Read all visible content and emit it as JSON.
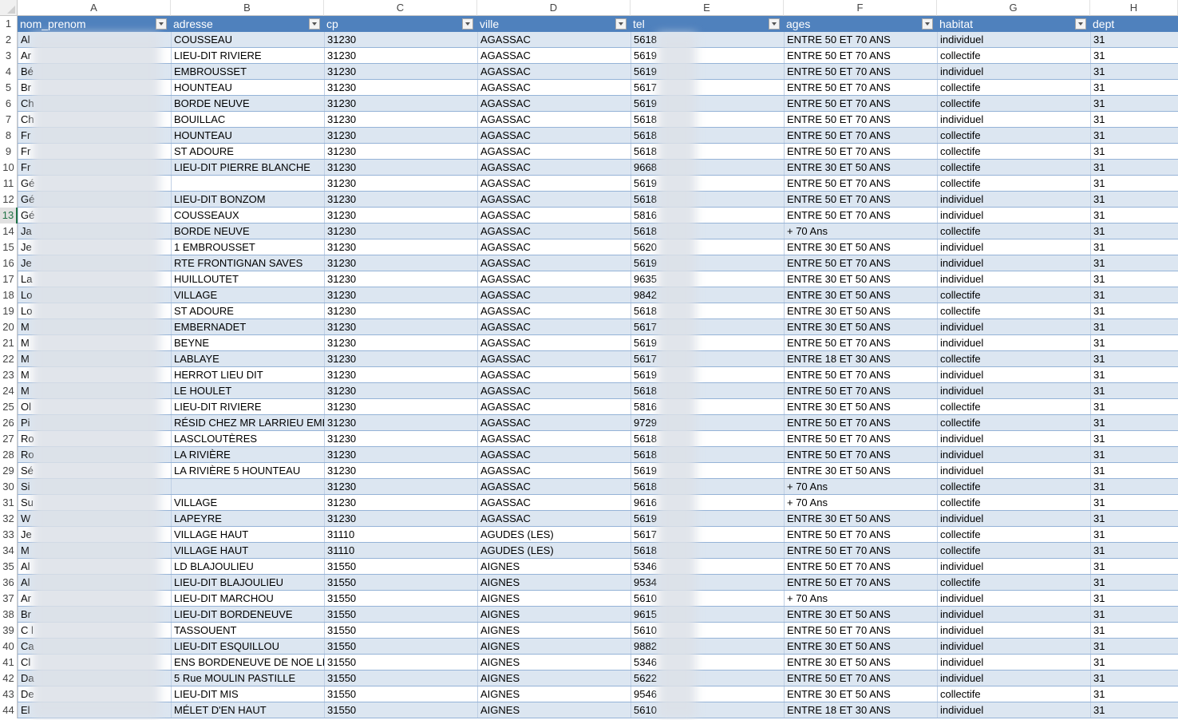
{
  "column_letters": [
    "A",
    "B",
    "C",
    "D",
    "E",
    "F",
    "G",
    "H"
  ],
  "active_row": 13,
  "headers": [
    "nom_prenom",
    "adresse",
    "cp",
    "ville",
    "tel",
    "ages",
    "habitat",
    "dept"
  ],
  "colors": {
    "header_bg": "#4f81bd",
    "band_bg": "#dce6f1",
    "row_border": "#95b3d7",
    "active_row_number": "#217346"
  },
  "redacted_columns": [
    "nom_prenom",
    "tel"
  ],
  "rows": [
    [
      "Al",
      "COUSSEAU",
      "31230",
      "AGASSAC",
      "5618",
      "ENTRE 50 ET 70 ANS",
      "individuel",
      "31"
    ],
    [
      "Ar",
      "LIEU-DIT RIVIERE",
      "31230",
      "AGASSAC",
      "5619",
      "ENTRE 50 ET 70 ANS",
      "collectife",
      "31"
    ],
    [
      "Bé",
      "EMBROUSSET",
      "31230",
      "AGASSAC",
      "5619",
      "ENTRE 50 ET 70 ANS",
      "individuel",
      "31"
    ],
    [
      "Br",
      "HOUNTEAU",
      "31230",
      "AGASSAC",
      "5617",
      "ENTRE 50 ET 70 ANS",
      "collectife",
      "31"
    ],
    [
      "Ch",
      "BORDE NEUVE",
      "31230",
      "AGASSAC",
      "5619",
      "ENTRE 50 ET 70 ANS",
      "collectife",
      "31"
    ],
    [
      "Ch",
      "BOUILLAC",
      "31230",
      "AGASSAC",
      "5618",
      "ENTRE 50 ET 70 ANS",
      "individuel",
      "31"
    ],
    [
      "Fr",
      "HOUNTEAU",
      "31230",
      "AGASSAC",
      "5618",
      "ENTRE 50 ET 70 ANS",
      "collectife",
      "31"
    ],
    [
      "Fr",
      "ST ADOURE",
      "31230",
      "AGASSAC",
      "5618",
      "ENTRE 50 ET 70 ANS",
      "collectife",
      "31"
    ],
    [
      "Fr",
      "LIEU-DIT PIERRE BLANCHE",
      "31230",
      "AGASSAC",
      "9668",
      "ENTRE 30 ET 50 ANS",
      "collectife",
      "31"
    ],
    [
      "Gé",
      "",
      "31230",
      "AGASSAC",
      "5619",
      "ENTRE 50 ET 70 ANS",
      "collectife",
      "31"
    ],
    [
      "Gé",
      "LIEU-DIT BONZOM",
      "31230",
      "AGASSAC",
      "5618",
      "ENTRE 50 ET 70 ANS",
      "individuel",
      "31"
    ],
    [
      "Gé",
      "COUSSEAUX",
      "31230",
      "AGASSAC",
      "5816",
      "ENTRE 50 ET 70 ANS",
      "individuel",
      "31"
    ],
    [
      "Ja",
      "BORDE NEUVE",
      "31230",
      "AGASSAC",
      "5618",
      "+ 70 Ans",
      "collectife",
      "31"
    ],
    [
      "Je",
      "1 EMBROUSSET",
      "31230",
      "AGASSAC",
      "5620",
      "ENTRE 30 ET 50 ANS",
      "individuel",
      "31"
    ],
    [
      "Je",
      "RTE FRONTIGNAN SAVES",
      "31230",
      "AGASSAC",
      "5619",
      "ENTRE 50 ET 70 ANS",
      "individuel",
      "31"
    ],
    [
      "La",
      "HUILLOUTET",
      "31230",
      "AGASSAC",
      "9635",
      "ENTRE 30 ET 50 ANS",
      "individuel",
      "31"
    ],
    [
      "Lo",
      "VILLAGE",
      "31230",
      "AGASSAC",
      "9842",
      "ENTRE 30 ET 50 ANS",
      "collectife",
      "31"
    ],
    [
      "Lo",
      "ST ADOURE",
      "31230",
      "AGASSAC",
      "5618",
      "ENTRE 30 ET 50 ANS",
      "collectife",
      "31"
    ],
    [
      "M",
      "EMBERNADET",
      "31230",
      "AGASSAC",
      "5617",
      "ENTRE 30 ET 50 ANS",
      "individuel",
      "31"
    ],
    [
      "M",
      "BEYNE",
      "31230",
      "AGASSAC",
      "5619",
      "ENTRE 50 ET 70 ANS",
      "individuel",
      "31"
    ],
    [
      "M",
      "LABLAYE",
      "31230",
      "AGASSAC",
      "5617",
      "ENTRE 18 ET 30 ANS",
      "collectife",
      "31"
    ],
    [
      "M",
      "HERROT LIEU DIT",
      "31230",
      "AGASSAC",
      "5619",
      "ENTRE 50 ET 70 ANS",
      "individuel",
      "31"
    ],
    [
      "M",
      "LE HOULET",
      "31230",
      "AGASSAC",
      "5618",
      "ENTRE 50 ET 70 ANS",
      "individuel",
      "31"
    ],
    [
      "Ol",
      "LIEU-DIT RIVIERE",
      "31230",
      "AGASSAC",
      "5816",
      "ENTRE 30 ET 50 ANS",
      "collectife",
      "31"
    ],
    [
      "Pi",
      "RÉSID CHEZ MR LARRIEU EMBRO",
      "31230",
      "AGASSAC",
      "9729",
      "ENTRE 50 ET 70 ANS",
      "collectife",
      "31"
    ],
    [
      "Ro",
      "LASCLOUTÈRES",
      "31230",
      "AGASSAC",
      "5618",
      "ENTRE 50 ET 70 ANS",
      "individuel",
      "31"
    ],
    [
      "Ro",
      "LA RIVIÈRE",
      "31230",
      "AGASSAC",
      "5618",
      "ENTRE 50 ET 70 ANS",
      "individuel",
      "31"
    ],
    [
      "Sé",
      "LA RIVIÈRE 5 HOUNTEAU",
      "31230",
      "AGASSAC",
      "5619",
      "ENTRE 30 ET 50 ANS",
      "individuel",
      "31"
    ],
    [
      "Si",
      "",
      "31230",
      "AGASSAC",
      "5618",
      "+ 70 Ans",
      "collectife",
      "31"
    ],
    [
      "Su",
      "VILLAGE",
      "31230",
      "AGASSAC",
      "9616",
      "+ 70 Ans",
      "collectife",
      "31"
    ],
    [
      "W",
      "LAPEYRE",
      "31230",
      "AGASSAC",
      "5619",
      "ENTRE 30 ET 50 ANS",
      "individuel",
      "31"
    ],
    [
      "Je",
      "VILLAGE HAUT",
      "31110",
      "AGUDES (LES)",
      "5617",
      "ENTRE 50 ET 70 ANS",
      "collectife",
      "31"
    ],
    [
      "M",
      "VILLAGE HAUT",
      "31110",
      "AGUDES (LES)",
      "5618",
      "ENTRE 50 ET 70 ANS",
      "collectife",
      "31"
    ],
    [
      "Al",
      "LD BLAJOULIEU",
      "31550",
      "AIGNES",
      "5346",
      "ENTRE 50 ET 70 ANS",
      "individuel",
      "31"
    ],
    [
      "Al",
      "LIEU-DIT BLAJOULIEU",
      "31550",
      "AIGNES",
      "9534",
      "ENTRE 50 ET 70 ANS",
      "collectife",
      "31"
    ],
    [
      "Ar",
      "LIEU-DIT MARCHOU",
      "31550",
      "AIGNES",
      "5610",
      "+ 70 Ans",
      "individuel",
      "31"
    ],
    [
      "Br",
      "LIEU-DIT BORDENEUVE",
      "31550",
      "AIGNES",
      "9615",
      "ENTRE 30 ET 50 ANS",
      "individuel",
      "31"
    ],
    [
      "C l",
      "TASSOUENT",
      "31550",
      "AIGNES",
      "5610",
      "ENTRE 50 ET 70 ANS",
      "individuel",
      "31"
    ],
    [
      "Ca",
      "LIEU-DIT ESQUILLOU",
      "31550",
      "AIGNES",
      "9882",
      "ENTRE 30 ET 50 ANS",
      "individuel",
      "31"
    ],
    [
      "Cl",
      "ENS BORDENEUVE DE NOE LIEU",
      "31550",
      "AIGNES",
      "5346",
      "ENTRE 30 ET 50 ANS",
      "individuel",
      "31"
    ],
    [
      "Da",
      "5 Rue MOULIN PASTILLE",
      "31550",
      "AIGNES",
      "5622",
      "ENTRE 50 ET 70 ANS",
      "individuel",
      "31"
    ],
    [
      "De",
      "LIEU-DIT MIS",
      "31550",
      "AIGNES",
      "9546",
      "ENTRE 30 ET 50 ANS",
      "collectife",
      "31"
    ],
    [
      "El",
      "MÉLET D'EN HAUT",
      "31550",
      "AIGNES",
      "5610",
      "ENTRE 18 ET 30 ANS",
      "individuel",
      "31"
    ]
  ]
}
